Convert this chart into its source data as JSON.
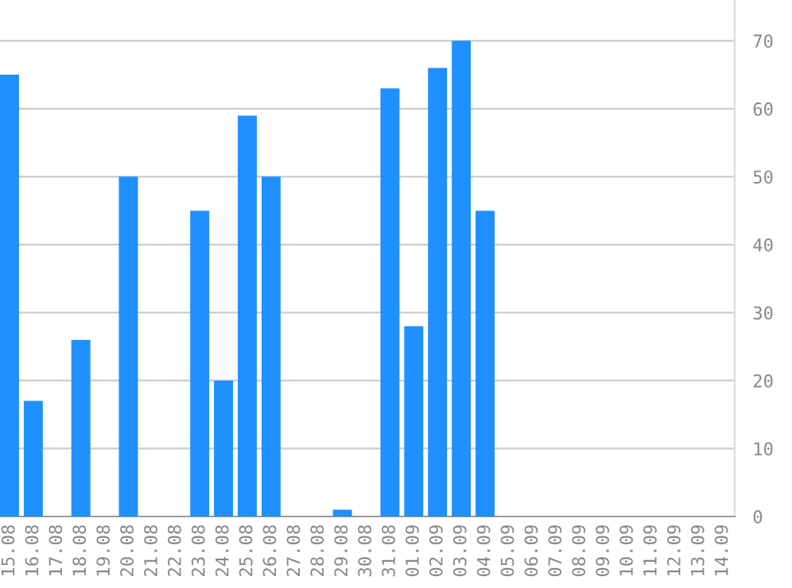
{
  "chart_data": {
    "type": "bar",
    "categories": [
      "15.08",
      "16.08",
      "17.08",
      "18.08",
      "19.08",
      "20.08",
      "21.08",
      "22.08",
      "23.08",
      "24.08",
      "25.08",
      "26.08",
      "27.08",
      "28.08",
      "29.08",
      "30.08",
      "31.08",
      "01.09",
      "02.09",
      "03.09",
      "04.09",
      "05.09",
      "06.09",
      "07.09",
      "08.09",
      "09.09",
      "10.09",
      "11.09",
      "12.09",
      "13.09",
      "14.09"
    ],
    "values": [
      65,
      17,
      0,
      26,
      0,
      50,
      0,
      0,
      45,
      20,
      59,
      50,
      0,
      0,
      1,
      0,
      63,
      28,
      66,
      70,
      45,
      0,
      0,
      0,
      0,
      0,
      0,
      0,
      0,
      0,
      0
    ],
    "color": "#1e90ff",
    "ylim": [
      0,
      76
    ],
    "yticks": [
      0,
      10,
      20,
      30,
      40,
      50,
      60,
      70
    ],
    "grid": "y"
  }
}
